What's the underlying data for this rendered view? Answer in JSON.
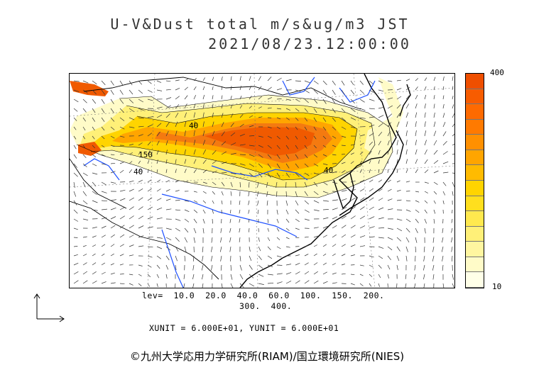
{
  "title": {
    "line1": "U-V&Dust total m/s&ug/m3 JST",
    "line2": "2021/08/23.12:00:00"
  },
  "colorbar": {
    "max_label": "400",
    "min_label": "10",
    "colors": [
      "#ffffe8",
      "#fffbc8",
      "#fff6a0",
      "#fff078",
      "#ffe94e",
      "#ffdf1e",
      "#ffd400",
      "#ffbb00",
      "#ffa500",
      "#ff9000",
      "#ff7a00",
      "#fe6a00",
      "#f75c00",
      "#ef4f00"
    ]
  },
  "contour_info": {
    "levels_line1": "lev=  10.0  20.0  40.0  60.0  100.  150.  200.",
    "levels_line2": "300.  400.",
    "units_line": "XUNIT = 6.000E+01, YUNIT = 6.000E+01"
  },
  "map_labels": [
    "40",
    "150",
    "40",
    "40"
  ],
  "copyright": "©九州大学応用力学研究所(RIAM)/国立環境研究所(NIES)",
  "map_colors": {
    "land_outline": "#000000",
    "river": "#1e50ff",
    "dust_high": "#f05a00",
    "dust_mid": "#ffd400",
    "dust_low": "#fff6a0"
  }
}
